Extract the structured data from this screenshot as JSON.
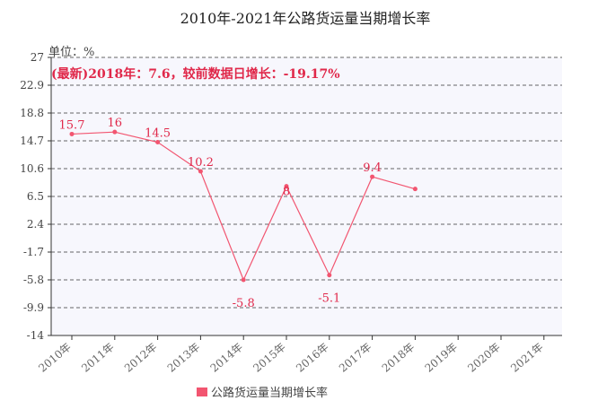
{
  "chart_data": {
    "type": "line",
    "title": "2010年-2021年公路货运量当期增长率",
    "unit_label": "单位：%",
    "annotation": "(最新)2018年：7.6，较前数据日增长：-19.17%",
    "categories": [
      "2010年",
      "2011年",
      "2012年",
      "2013年",
      "2014年",
      "2015年",
      "2016年",
      "2017年",
      "2018年",
      "2019年",
      "2020年",
      "2021年"
    ],
    "y_ticks": [
      "27",
      "22.9",
      "18.8",
      "14.7",
      "10.6",
      "6.5",
      "2.4",
      "-1.7",
      "-5.8",
      "-9.9",
      "-14"
    ],
    "ylim": [
      -14,
      27
    ],
    "grid": true,
    "legend_position": "bottom",
    "series": [
      {
        "name": "公路货运量当期增长率",
        "color": "#f25570",
        "values": [
          15.7,
          16,
          14.5,
          10.2,
          -5.8,
          8,
          -5.1,
          9.4,
          7.6,
          null,
          null,
          null
        ],
        "labels": [
          "15.7",
          "16",
          "14.5",
          "10.2",
          "-5.8",
          "8",
          "-5.1",
          "9.4",
          "",
          "",
          "",
          ""
        ]
      }
    ]
  }
}
